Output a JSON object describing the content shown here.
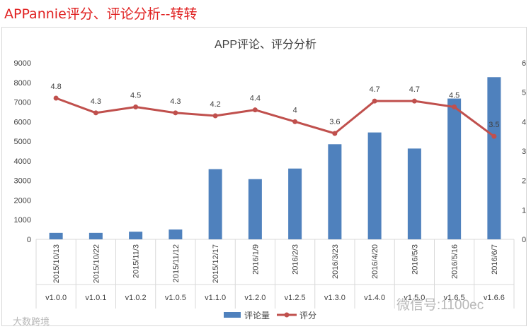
{
  "header": {
    "title": "APPannie评分、评论分析--转转"
  },
  "watermarks": {
    "top": "微信号:1100ec",
    "bottom": "大数跨境"
  },
  "chart_data": {
    "type": "bar",
    "title": "APP评论、评分分析",
    "categories": [
      "2015/10/13",
      "2015/10/22",
      "2015/11/3",
      "2015/11/12",
      "2015/12/17",
      "2016/1/9",
      "2016/2/3",
      "2016/3/23",
      "2016/4/20",
      "2016/5/3",
      "2016/5/16",
      "2016/6/7"
    ],
    "versions": [
      "v1.0.0",
      "v1.0.1",
      "v1.0.2",
      "v1.0.5",
      "v1.1.0",
      "v1.2.0",
      "v1.2.5",
      "v1.3.0",
      "v1.4.0",
      "v1.5.0",
      "v1.6.5",
      "v1.6.6"
    ],
    "series": [
      {
        "name": "评论量",
        "type": "bar",
        "axis": "left",
        "color": "#4f81bd",
        "values": [
          330,
          330,
          390,
          500,
          3580,
          3070,
          3610,
          4850,
          5450,
          4630,
          7180,
          8270
        ]
      },
      {
        "name": "评分",
        "type": "line",
        "axis": "right",
        "color": "#c0504d",
        "values": [
          4.8,
          4.3,
          4.5,
          4.3,
          4.2,
          4.4,
          4,
          3.6,
          4.7,
          4.7,
          4.5,
          3.5
        ],
        "labels": [
          "4.8",
          "4.3",
          "4.5",
          "4.3",
          "4.2",
          "4.4",
          "4",
          "3.6",
          "4.7",
          "4.7",
          "4.5",
          "3.5"
        ]
      }
    ],
    "ylim_left": [
      0,
      9000
    ],
    "yticks_left": [
      "0",
      "1000",
      "2000",
      "3000",
      "4000",
      "5000",
      "6000",
      "7000",
      "8000",
      "9000"
    ],
    "ylim_right": [
      0,
      6
    ],
    "yticks_right": [
      "0",
      "1",
      "2",
      "3",
      "4",
      "5",
      "6"
    ],
    "grid": false,
    "legend": "bottom"
  }
}
